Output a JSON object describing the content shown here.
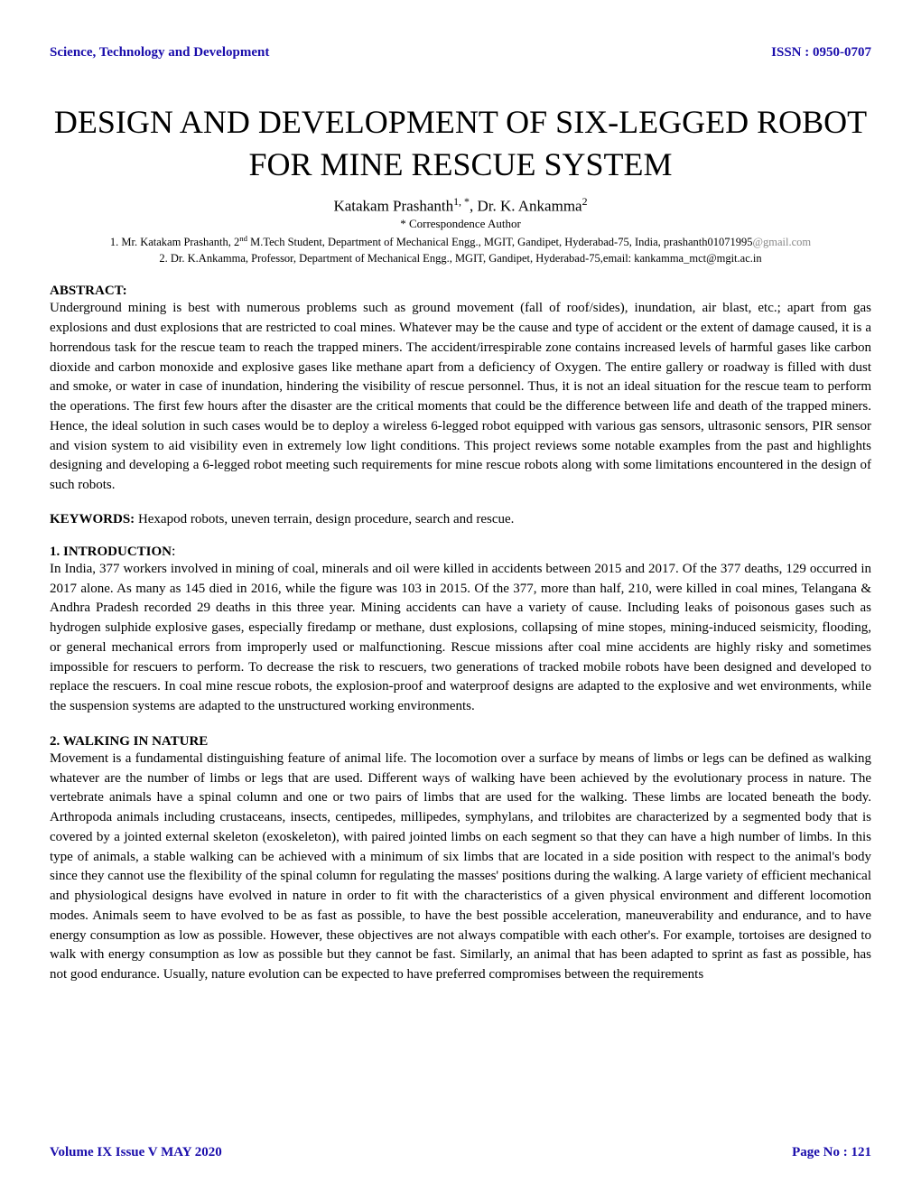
{
  "header": {
    "journal": "Science, Technology and Development",
    "issn": "ISSN : 0950-0707"
  },
  "title": "DESIGN AND DEVELOPMENT OF SIX-LEGGED ROBOT FOR MINE RESCUE SYSTEM",
  "authors_html": "Katakam Prashanth<sup>1, *</sup>, Dr. K. Ankamma<sup>2</sup>",
  "correspondence": "* Correspondence Author",
  "affiliations": {
    "a1_prefix": "1. Mr. Katakam Prashanth, 2",
    "a1_sup": "nd",
    "a1_rest": " M.Tech Student, Department of Mechanical Engg., MGIT, Gandipet, Hyderabad-75, India, prashanth01071995",
    "a1_gray": "@gmail.com",
    "a2": "2. Dr. K.Ankamma, Professor, Department of Mechanical Engg., MGIT, Gandipet, Hyderabad-75,email: kankamma_mct@mgit.ac.in"
  },
  "abstract": {
    "heading": "ABSTRACT:",
    "body": "Underground mining is best with numerous problems such as ground movement (fall of roof/sides), inundation, air blast, etc.; apart from gas explosions and dust explosions that are restricted to coal mines. Whatever may be the cause and type of accident or the extent of damage caused, it is a horrendous task for the rescue team to reach the trapped miners. The accident/irrespirable zone contains increased levels of harmful gases like carbon dioxide and carbon monoxide and explosive gases like methane apart from a deficiency of Oxygen. The entire gallery or roadway is filled with dust and smoke, or water in case of inundation, hindering the visibility of rescue personnel. Thus, it is not an ideal situation for the rescue team to perform the operations. The first few hours after the disaster are the critical moments that could be the difference between life and death of the trapped miners. Hence, the ideal solution in such cases would be to deploy a wireless 6-legged robot equipped with various gas sensors, ultrasonic sensors, PIR sensor and vision system to aid visibility even in extremely low light conditions. This project reviews some notable examples from the past and highlights designing and developing a 6-legged robot meeting such requirements for mine rescue robots along with some limitations encountered in the design of such robots."
  },
  "keywords": {
    "label": "KEYWORDS:",
    "text": " Hexapod robots, uneven terrain, design procedure, search and rescue."
  },
  "introduction": {
    "heading": "1. INTRODUCTION",
    "body": "In India, 377 workers involved in mining of coal, minerals and oil were killed in accidents between 2015 and 2017. Of the 377 deaths, 129 occurred in 2017 alone. As many as 145 died in 2016, while the figure was 103 in 2015. Of the 377, more than half, 210, were killed in coal mines, Telangana & Andhra Pradesh recorded 29 deaths in this three year. Mining accidents can have a variety of cause. Including leaks of poisonous gases such as hydrogen sulphide explosive gases, especially firedamp or methane, dust explosions, collapsing of mine stopes, mining-induced seismicity, flooding, or general mechanical errors from improperly used or malfunctioning. Rescue missions after coal mine accidents are highly risky and sometimes impossible for rescuers to perform. To decrease the risk to rescuers, two generations of tracked mobile robots have been designed and developed to replace the rescuers. In coal mine rescue robots, the explosion-proof and waterproof designs are adapted to the explosive and wet environments, while the suspension systems are adapted to the unstructured working environments."
  },
  "walking": {
    "heading": "2. WALKING IN NATURE",
    "body": "Movement is a fundamental distinguishing feature of animal life. The locomotion over a surface by means of limbs or legs can be defined as walking whatever are the number of limbs or legs that are used. Different ways of walking have been achieved by the evolutionary process in nature. The vertebrate animals have a spinal column and one or two pairs of limbs that are used for the walking. These limbs are located beneath the body. Arthropoda animals including crustaceans, insects, centipedes, millipedes, symphylans, and trilobites are characterized by a segmented body that is covered by a jointed external skeleton (exoskeleton), with paired jointed limbs on each segment so that they can have a high number of limbs. In this type of animals, a stable walking can be achieved with a minimum of six limbs that are located in a side position with respect to the animal's body since they cannot use the flexibility of the spinal column for regulating the masses' positions during the walking. A large variety of efficient mechanical and physiological designs have evolved in nature in order to fit with the characteristics of a given physical environment and different locomotion modes. Animals seem to have evolved to be as fast as possible, to have the best possible acceleration, maneuverability and endurance, and to have energy consumption as low as possible. However, these objectives are not always compatible with each other's. For example, tortoises are designed to walk with energy consumption as low as possible but they cannot be fast. Similarly, an animal that has been adapted to sprint as fast as possible, has not good endurance. Usually, nature evolution can be expected to have preferred compromises between the requirements"
  },
  "footer": {
    "volume": "Volume IX Issue V MAY 2020",
    "page": "Page No : 121"
  }
}
